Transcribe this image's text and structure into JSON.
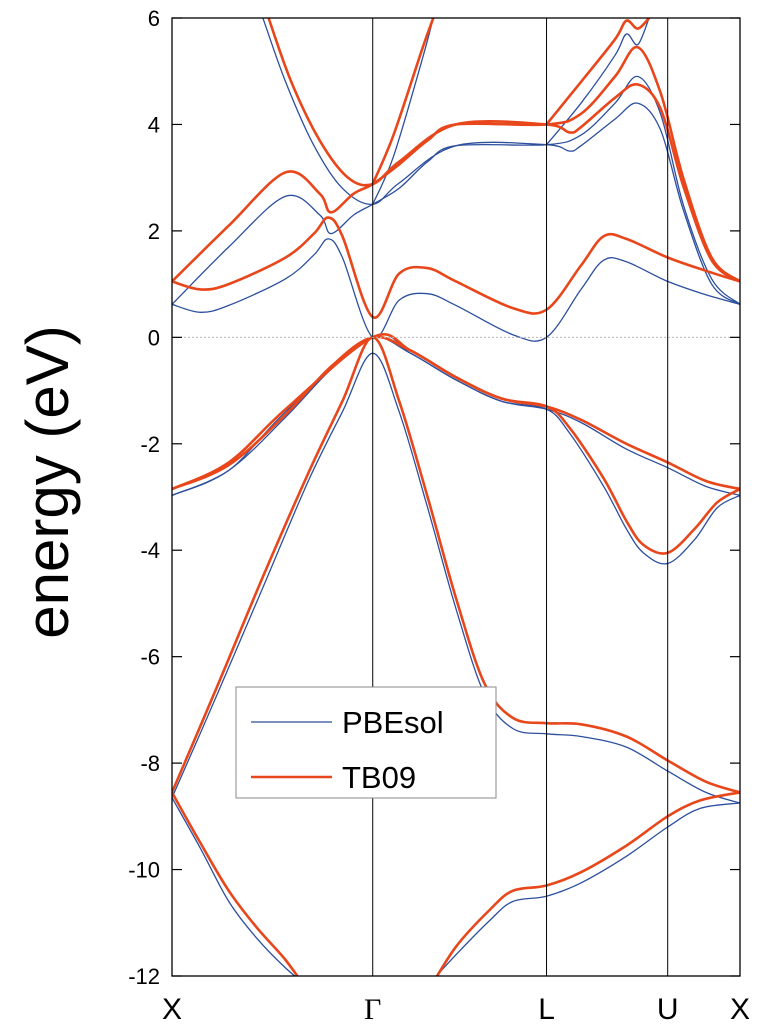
{
  "chart_data": {
    "type": "line",
    "title": "",
    "xlabel": "",
    "ylabel": "energy (eV)",
    "ylim": [
      -12,
      6
    ],
    "yticks": [
      6,
      4,
      2,
      0,
      -2,
      -4,
      -6,
      -8,
      -10,
      -12
    ],
    "ytick_labels": [
      "6",
      "4",
      "2",
      "0",
      "-2",
      "-4",
      "-6",
      "-8",
      "-10",
      "-12"
    ],
    "xlim": [
      0,
      1
    ],
    "high_symmetry_points": [
      {
        "label": "X",
        "x": 0.0
      },
      {
        "label": "Γ",
        "x": 0.3534
      },
      {
        "label": "L",
        "x": 0.6594
      },
      {
        "label": "U",
        "x": 0.8727
      },
      {
        "label": "X",
        "x": 1.0
      }
    ],
    "fermi_level": 0,
    "grid": false,
    "legend_position": "lower-left",
    "colors": {
      "PBEsol": "#2c4f9e",
      "TB09": "#e8461b"
    },
    "series": [
      {
        "name": "PBEsol",
        "color": "#2c4f9e",
        "bands": [
          [
            [
              0,
              -8.65
            ],
            [
              0.05,
              -9.6
            ],
            [
              0.1,
              -10.6
            ],
            [
              0.15,
              -11.3
            ],
            [
              0.2,
              -11.85
            ],
            [
              0.25,
              -12.3
            ]
          ],
          [
            [
              0.44,
              -12.3
            ],
            [
              0.5,
              -11.6
            ],
            [
              0.56,
              -10.95
            ],
            [
              0.6,
              -10.6
            ],
            [
              0.6594,
              -10.5
            ],
            [
              0.72,
              -10.25
            ],
            [
              0.8,
              -9.75
            ],
            [
              0.8727,
              -9.2
            ],
            [
              0.93,
              -8.85
            ],
            [
              1.0,
              -8.75
            ]
          ],
          [
            [
              0,
              -8.65
            ],
            [
              0.08,
              -6.7
            ],
            [
              0.16,
              -4.7
            ],
            [
              0.24,
              -2.7
            ],
            [
              0.3,
              -1.4
            ],
            [
              0.3534,
              -0.3
            ],
            [
              0.4,
              -1.4
            ],
            [
              0.45,
              -3.2
            ],
            [
              0.5,
              -5.1
            ],
            [
              0.55,
              -6.7
            ],
            [
              0.6,
              -7.35
            ],
            [
              0.6594,
              -7.45
            ],
            [
              0.72,
              -7.5
            ],
            [
              0.8,
              -7.7
            ],
            [
              0.8727,
              -8.15
            ],
            [
              0.94,
              -8.55
            ],
            [
              1.0,
              -8.75
            ]
          ],
          [
            [
              0,
              -2.97
            ],
            [
              0.1,
              -2.5
            ],
            [
              0.2,
              -1.5
            ],
            [
              0.28,
              -0.6
            ],
            [
              0.3534,
              0
            ],
            [
              0.42,
              -0.3
            ],
            [
              0.5,
              -0.8
            ],
            [
              0.58,
              -1.2
            ],
            [
              0.6594,
              -1.35
            ],
            [
              0.7,
              -1.8
            ],
            [
              0.76,
              -2.8
            ],
            [
              0.8,
              -3.6
            ],
            [
              0.83,
              -4.05
            ],
            [
              0.8727,
              -4.25
            ],
            [
              0.92,
              -3.8
            ],
            [
              0.96,
              -3.2
            ],
            [
              1.0,
              -2.97
            ]
          ],
          [
            [
              0,
              -2.97
            ],
            [
              0.1,
              -2.5
            ],
            [
              0.2,
              -1.4
            ],
            [
              0.3534,
              0
            ],
            [
              0.42,
              -0.3
            ],
            [
              0.5,
              -0.8
            ],
            [
              0.58,
              -1.2
            ],
            [
              0.6594,
              -1.35
            ],
            [
              0.72,
              -1.6
            ],
            [
              0.8,
              -2.1
            ],
            [
              0.8727,
              -2.45
            ],
            [
              0.94,
              -2.8
            ],
            [
              1.0,
              -2.97
            ]
          ],
          [
            [
              0,
              0.62
            ],
            [
              0.05,
              0.47
            ],
            [
              0.1,
              0.6
            ],
            [
              0.2,
              1.1
            ],
            [
              0.25,
              1.55
            ],
            [
              0.275,
              1.85
            ],
            [
              0.3,
              1.5
            ],
            [
              0.3534,
              0
            ],
            [
              0.4,
              0.7
            ],
            [
              0.45,
              0.82
            ],
            [
              0.5,
              0.6
            ],
            [
              0.6,
              0.05
            ],
            [
              0.6594,
              0
            ],
            [
              0.72,
              0.9
            ],
            [
              0.76,
              1.45
            ],
            [
              0.8,
              1.42
            ],
            [
              0.8727,
              1.05
            ],
            [
              0.94,
              0.8
            ],
            [
              1.0,
              0.62
            ]
          ],
          [
            [
              0,
              0.62
            ],
            [
              0.1,
              1.7
            ],
            [
              0.2,
              2.65
            ],
            [
              0.26,
              2.3
            ],
            [
              0.28,
              1.95
            ],
            [
              0.32,
              2.3
            ],
            [
              0.3534,
              2.5
            ],
            [
              0.4,
              2.8
            ],
            [
              0.45,
              3.3
            ],
            [
              0.5,
              3.6
            ],
            [
              0.6594,
              3.62
            ],
            [
              0.72,
              3.8
            ],
            [
              0.78,
              4.4
            ],
            [
              0.82,
              4.9
            ],
            [
              0.86,
              4.2
            ],
            [
              0.9,
              2.5
            ],
            [
              0.95,
              1.1
            ],
            [
              1.0,
              0.62
            ]
          ],
          [
            [
              0.16,
              6.0
            ],
            [
              0.2,
              4.8
            ],
            [
              0.25,
              3.6
            ],
            [
              0.3,
              2.8
            ],
            [
              0.3534,
              2.5
            ],
            [
              0.4,
              2.9
            ],
            [
              0.5,
              3.6
            ],
            [
              0.6594,
              3.62
            ],
            [
              0.7,
              3.5
            ],
            [
              0.72,
              3.6
            ],
            [
              0.78,
              4.1
            ],
            [
              0.82,
              4.4
            ],
            [
              0.86,
              3.9
            ],
            [
              0.9,
              2.4
            ],
            [
              0.95,
              1.0
            ],
            [
              1.0,
              0.62
            ]
          ],
          [
            [
              0.3534,
              2.5
            ],
            [
              0.39,
              3.4
            ],
            [
              0.44,
              5.2
            ],
            [
              0.46,
              6.0
            ]
          ],
          [
            [
              0.6594,
              3.62
            ],
            [
              0.72,
              4.4
            ],
            [
              0.78,
              5.3
            ],
            [
              0.8,
              5.7
            ],
            [
              0.82,
              5.5
            ],
            [
              0.84,
              6.0
            ]
          ]
        ]
      },
      {
        "name": "TB09",
        "color": "#e8461b",
        "bands": [
          [
            [
              0,
              -8.55
            ],
            [
              0.05,
              -9.5
            ],
            [
              0.1,
              -10.4
            ],
            [
              0.15,
              -11.1
            ],
            [
              0.2,
              -11.7
            ],
            [
              0.24,
              -12.3
            ]
          ],
          [
            [
              0.45,
              -12.3
            ],
            [
              0.5,
              -11.45
            ],
            [
              0.56,
              -10.75
            ],
            [
              0.6,
              -10.4
            ],
            [
              0.6594,
              -10.3
            ],
            [
              0.72,
              -10.05
            ],
            [
              0.8,
              -9.55
            ],
            [
              0.8727,
              -9.0
            ],
            [
              0.93,
              -8.7
            ],
            [
              1.0,
              -8.55
            ]
          ],
          [
            [
              0,
              -8.55
            ],
            [
              0.08,
              -6.55
            ],
            [
              0.16,
              -4.5
            ],
            [
              0.24,
              -2.55
            ],
            [
              0.3,
              -1.2
            ],
            [
              0.3534,
              0
            ],
            [
              0.4,
              -1.2
            ],
            [
              0.45,
              -3.0
            ],
            [
              0.5,
              -4.9
            ],
            [
              0.55,
              -6.5
            ],
            [
              0.6,
              -7.15
            ],
            [
              0.6594,
              -7.25
            ],
            [
              0.72,
              -7.27
            ],
            [
              0.8,
              -7.5
            ],
            [
              0.8727,
              -7.95
            ],
            [
              0.94,
              -8.35
            ],
            [
              1.0,
              -8.55
            ]
          ],
          [
            [
              0,
              -2.85
            ],
            [
              0.1,
              -2.4
            ],
            [
              0.2,
              -1.45
            ],
            [
              0.28,
              -0.55
            ],
            [
              0.3534,
              0
            ],
            [
              0.42,
              -0.25
            ],
            [
              0.5,
              -0.75
            ],
            [
              0.58,
              -1.15
            ],
            [
              0.6594,
              -1.3
            ],
            [
              0.7,
              -1.7
            ],
            [
              0.76,
              -2.65
            ],
            [
              0.8,
              -3.45
            ],
            [
              0.83,
              -3.9
            ],
            [
              0.8727,
              -4.05
            ],
            [
              0.92,
              -3.6
            ],
            [
              0.96,
              -3.1
            ],
            [
              1.0,
              -2.85
            ]
          ],
          [
            [
              0,
              -2.85
            ],
            [
              0.1,
              -2.35
            ],
            [
              0.2,
              -1.35
            ],
            [
              0.3534,
              0
            ],
            [
              0.42,
              -0.25
            ],
            [
              0.5,
              -0.75
            ],
            [
              0.58,
              -1.15
            ],
            [
              0.6594,
              -1.3
            ],
            [
              0.72,
              -1.55
            ],
            [
              0.8,
              -2.0
            ],
            [
              0.8727,
              -2.35
            ],
            [
              0.94,
              -2.7
            ],
            [
              1.0,
              -2.85
            ]
          ],
          [
            [
              0,
              1.05
            ],
            [
              0.05,
              0.9
            ],
            [
              0.1,
              1.0
            ],
            [
              0.2,
              1.5
            ],
            [
              0.25,
              1.95
            ],
            [
              0.275,
              2.25
            ],
            [
              0.3,
              1.9
            ],
            [
              0.3534,
              0.38
            ],
            [
              0.4,
              1.2
            ],
            [
              0.45,
              1.3
            ],
            [
              0.5,
              1.05
            ],
            [
              0.6,
              0.55
            ],
            [
              0.6594,
              0.52
            ],
            [
              0.72,
              1.35
            ],
            [
              0.76,
              1.9
            ],
            [
              0.8,
              1.85
            ],
            [
              0.8727,
              1.5
            ],
            [
              0.94,
              1.25
            ],
            [
              1.0,
              1.05
            ]
          ],
          [
            [
              0,
              1.05
            ],
            [
              0.1,
              2.1
            ],
            [
              0.2,
              3.1
            ],
            [
              0.26,
              2.7
            ],
            [
              0.28,
              2.35
            ],
            [
              0.32,
              2.7
            ],
            [
              0.3534,
              2.88
            ],
            [
              0.4,
              3.25
            ],
            [
              0.45,
              3.7
            ],
            [
              0.5,
              4.0
            ],
            [
              0.6594,
              4.0
            ],
            [
              0.72,
              4.2
            ],
            [
              0.78,
              4.9
            ],
            [
              0.82,
              5.45
            ],
            [
              0.86,
              4.6
            ],
            [
              0.9,
              3.0
            ],
            [
              0.95,
              1.5
            ],
            [
              1.0,
              1.05
            ]
          ],
          [
            [
              0.17,
              6.0
            ],
            [
              0.21,
              4.8
            ],
            [
              0.26,
              3.7
            ],
            [
              0.31,
              3.0
            ],
            [
              0.3534,
              2.88
            ],
            [
              0.4,
              3.3
            ],
            [
              0.5,
              4.0
            ],
            [
              0.6594,
              4.0
            ],
            [
              0.7,
              3.85
            ],
            [
              0.72,
              3.95
            ],
            [
              0.78,
              4.5
            ],
            [
              0.82,
              4.75
            ],
            [
              0.86,
              4.3
            ],
            [
              0.9,
              2.85
            ],
            [
              0.95,
              1.45
            ],
            [
              1.0,
              1.05
            ]
          ],
          [
            [
              0.3534,
              2.88
            ],
            [
              0.39,
              3.8
            ],
            [
              0.44,
              5.4
            ],
            [
              0.46,
              6.0
            ]
          ],
          [
            [
              0.6594,
              4.0
            ],
            [
              0.72,
              4.8
            ],
            [
              0.78,
              5.6
            ],
            [
              0.8,
              5.95
            ],
            [
              0.82,
              5.8
            ],
            [
              0.84,
              6.0
            ]
          ]
        ]
      }
    ]
  }
}
